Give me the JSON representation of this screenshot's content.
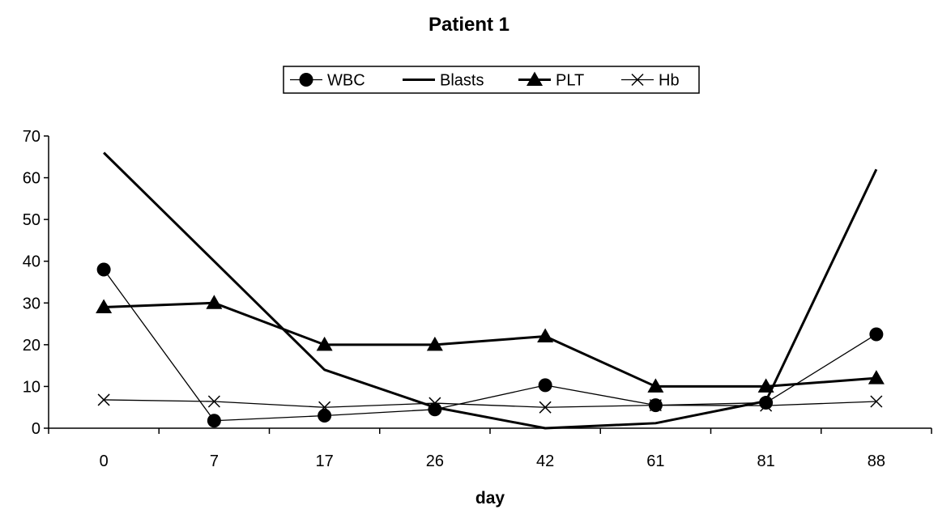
{
  "chart_data": {
    "type": "line",
    "title": "Patient 1",
    "xlabel": "day",
    "ylabel": "",
    "categories": [
      "0",
      "7",
      "17",
      "26",
      "42",
      "61",
      "81",
      "88"
    ],
    "ylim": [
      0,
      70
    ],
    "yticks": [
      "0",
      "10",
      "20",
      "30",
      "40",
      "50",
      "60",
      "70"
    ],
    "grid": false,
    "legend_position": "top-center",
    "series": [
      {
        "name": "WBC",
        "marker": "circle",
        "line": "thin",
        "values": [
          38,
          1.8,
          3,
          4.5,
          10.3,
          5.5,
          6.1,
          22.5
        ]
      },
      {
        "name": "Blasts",
        "marker": "none",
        "line": "thick",
        "values": [
          66,
          40,
          14,
          5,
          0,
          1.2,
          6.5,
          62
        ]
      },
      {
        "name": "PLT",
        "marker": "triangle",
        "line": "thick",
        "values": [
          29,
          30,
          20,
          20,
          22,
          10,
          10,
          12
        ]
      },
      {
        "name": "Hb",
        "marker": "x",
        "line": "thin",
        "values": [
          6.8,
          6.4,
          5,
          6,
          5,
          5.5,
          5.4,
          6.4
        ]
      }
    ]
  }
}
